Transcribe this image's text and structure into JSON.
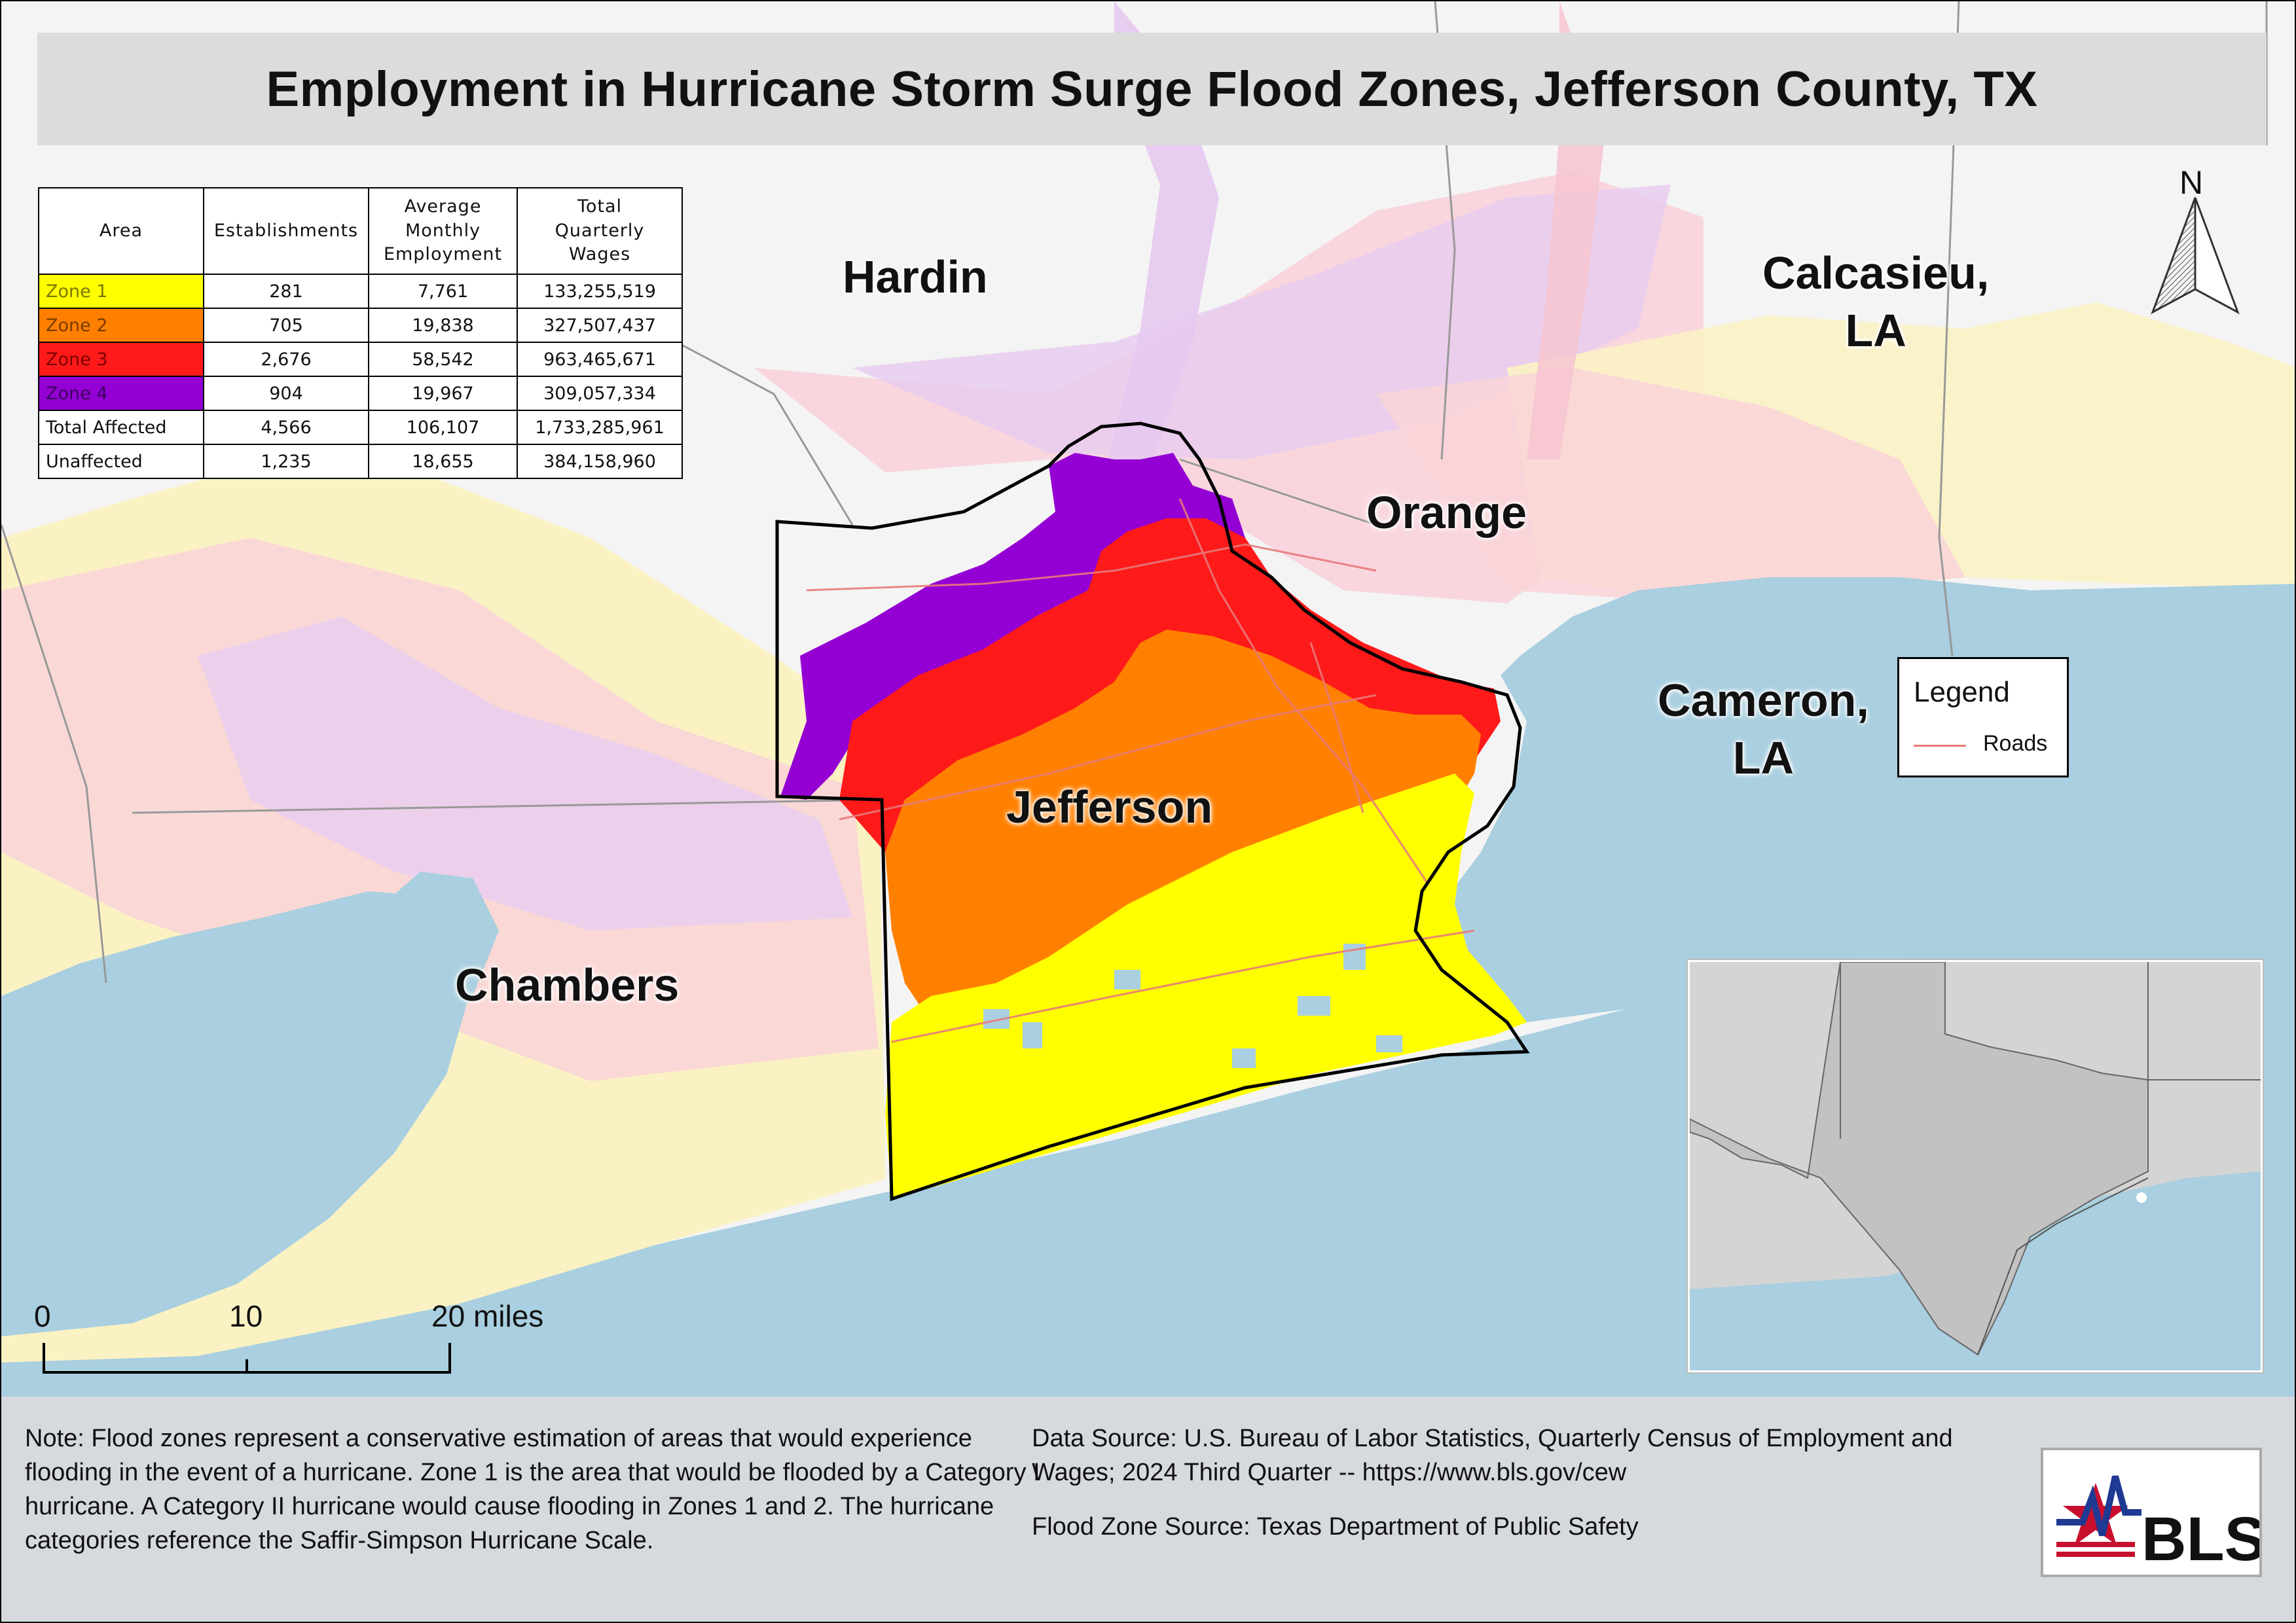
{
  "title": "Employment in Hurricane Storm Surge Flood Zones, Jefferson County, TX",
  "place_labels": {
    "hardin": "Hardin",
    "orange": "Orange",
    "calcasieu": "Calcasieu,\nLA",
    "cameron": "Cameron,\nLA",
    "jefferson": "Jefferson",
    "chambers": "Chambers"
  },
  "table": {
    "headers": [
      "Area",
      "Establishments",
      "Average\nMonthly\nEmployment",
      "Total\nQuarterly\nWages"
    ],
    "rows": [
      {
        "area": "Zone 1",
        "establishments": "281",
        "employment": "7,761",
        "wages": "133,255,519",
        "color": "#ffff00",
        "text_color": "#7a7a00"
      },
      {
        "area": "Zone 2",
        "establishments": "705",
        "employment": "19,838",
        "wages": "327,507,437",
        "color": "#ff8000",
        "text_color": "#7a3c00"
      },
      {
        "area": "Zone 3",
        "establishments": "2,676",
        "employment": "58,542",
        "wages": "963,465,671",
        "color": "#ff1a1a",
        "text_color": "#7a0000"
      },
      {
        "area": "Zone 4",
        "establishments": "904",
        "employment": "19,967",
        "wages": "309,057,334",
        "color": "#9400d3",
        "text_color": "#3d0060"
      },
      {
        "area": "Total Affected",
        "establishments": "4,566",
        "employment": "106,107",
        "wages": "1,733,285,961",
        "color": "#ffffff",
        "text_color": "#111111"
      },
      {
        "area": "Unaffected",
        "establishments": "1,235",
        "employment": "18,655",
        "wages": "384,158,960",
        "color": "#ffffff",
        "text_color": "#111111"
      }
    ]
  },
  "legend": {
    "title": "Legend",
    "items": [
      {
        "label": "Roads",
        "color": "#e77a7a"
      }
    ]
  },
  "north_arrow": {
    "letter": "N",
    "icon": "north-arrow-icon"
  },
  "scale_bar": {
    "labels": [
      "0",
      "10",
      "20 miles"
    ]
  },
  "footer": {
    "note": "Note: Flood zones represent a conservative estimation of areas that would experience flooding in the event of a hurricane. Zone 1 is the area that would be flooded by a Category I hurricane. A Category II hurricane would cause flooding in Zones 1 and 2. The hurricane categories reference the Saffir-Simpson Hurricane Scale.",
    "data_source": "Data Source: U.S. Bureau of Labor Statistics, Quarterly Census of Employment and Wages; 2024 Third Quarter -- https://www.bls.gov/cew",
    "flood_source": "Flood Zone Source: Texas Department of Public Safety"
  },
  "logo": {
    "text": "BLS",
    "icon": "bls-logo-icon"
  },
  "colors": {
    "water": "#a9cfe0",
    "land": "#f5f5f5",
    "zone1": "#ffff00",
    "zone2": "#ff8000",
    "zone3": "#ff1a1a",
    "zone4": "#9400d3",
    "pale_pink": "#f8c9d4",
    "pale_lavender": "#e6c9f0",
    "pale_yellow": "#fbf6c0",
    "road": "#e77a7a"
  }
}
